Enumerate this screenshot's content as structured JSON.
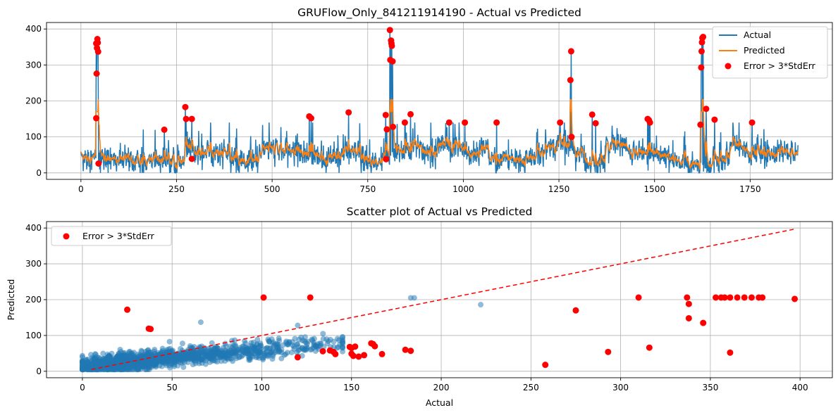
{
  "chart_data": [
    {
      "type": "line",
      "title": "GRUFlow_Only_841211914190 - Actual vs Predicted",
      "xlabel": "",
      "ylabel": "",
      "xlim": [
        -90,
        1965
      ],
      "ylim": [
        -18,
        418
      ],
      "xticks": [
        0,
        250,
        500,
        750,
        1000,
        1250,
        1500,
        1750
      ],
      "yticks": [
        0,
        100,
        200,
        300,
        400
      ],
      "grid": true,
      "legend_position": "top-right",
      "n_points": 1876,
      "colors": {
        "actual": "#1f77b4",
        "predicted": "#ff7f0e",
        "error": "#ff0000"
      },
      "series": [
        {
          "name": "Actual",
          "description": "noisy hourly flow, mostly 10-100 with spikes to ~398 near x=40, 810, 1283, 1625"
        },
        {
          "name": "Predicted",
          "description": "smoothed flow, mostly 20-80 with peaks ~205"
        }
      ],
      "error_points_label": "Error > 3*StdErr",
      "error_points": [
        [
          40,
          152
        ],
        [
          40,
          360
        ],
        [
          41,
          276
        ],
        [
          42,
          347
        ],
        [
          43,
          372
        ],
        [
          44,
          362
        ],
        [
          45,
          337
        ],
        [
          46,
          26
        ],
        [
          218,
          120
        ],
        [
          273,
          183
        ],
        [
          275,
          150
        ],
        [
          290,
          39
        ],
        [
          290,
          150
        ],
        [
          597,
          157
        ],
        [
          602,
          152
        ],
        [
          700,
          168
        ],
        [
          797,
          161
        ],
        [
          798,
          38
        ],
        [
          800,
          121
        ],
        [
          808,
          397
        ],
        [
          809,
          314
        ],
        [
          811,
          368
        ],
        [
          812,
          360
        ],
        [
          813,
          353
        ],
        [
          815,
          310
        ],
        [
          816,
          128
        ],
        [
          847,
          140
        ],
        [
          862,
          163
        ],
        [
          963,
          140
        ],
        [
          1004,
          140
        ],
        [
          1087,
          140
        ],
        [
          1253,
          140
        ],
        [
          1280,
          258
        ],
        [
          1282,
          338
        ],
        [
          1283,
          100
        ],
        [
          1337,
          162
        ],
        [
          1346,
          138
        ],
        [
          1482,
          150
        ],
        [
          1485,
          147
        ],
        [
          1488,
          140
        ],
        [
          1620,
          134
        ],
        [
          1622,
          293
        ],
        [
          1623,
          338
        ],
        [
          1624,
          363
        ],
        [
          1625,
          375
        ],
        [
          1627,
          378
        ],
        [
          1635,
          178
        ],
        [
          1657,
          148
        ],
        [
          1755,
          140
        ]
      ]
    },
    {
      "type": "scatter",
      "title": "Scatter plot of Actual vs Predicted",
      "xlabel": "Actual",
      "ylabel": "Predicted",
      "xlim": [
        -20,
        418
      ],
      "ylim": [
        -18,
        418
      ],
      "xticks": [
        0,
        50,
        100,
        150,
        200,
        250,
        300,
        350,
        400
      ],
      "yticks": [
        0,
        100,
        200,
        300,
        400
      ],
      "grid": true,
      "legend_position": "top-left",
      "identity_line": {
        "from": [
          5,
          5
        ],
        "to": [
          397,
          397
        ],
        "color": "#ff0000",
        "style": "dashed"
      },
      "bulk_description": "dense cloud of ~1800 blue points (alpha 0.5) for Actual 0-145, Predicted 5-140",
      "bulk_outliers": [
        [
          183,
          205
        ],
        [
          185,
          205
        ],
        [
          222,
          186
        ],
        [
          66,
          137
        ],
        [
          120,
          128
        ],
        [
          143,
          87
        ]
      ],
      "error_points_label": "Error > 3*StdErr",
      "error_points": [
        [
          25,
          172
        ],
        [
          37,
          119
        ],
        [
          38,
          118
        ],
        [
          101,
          206
        ],
        [
          120,
          39
        ],
        [
          127,
          206
        ],
        [
          134,
          56
        ],
        [
          138,
          58
        ],
        [
          140,
          54
        ],
        [
          141,
          48
        ],
        [
          149,
          68
        ],
        [
          150,
          65
        ],
        [
          150,
          49
        ],
        [
          151,
          43
        ],
        [
          152,
          69
        ],
        [
          154,
          41
        ],
        [
          157,
          45
        ],
        [
          161,
          78
        ],
        [
          162,
          76
        ],
        [
          163,
          70
        ],
        [
          167,
          48
        ],
        [
          180,
          60
        ],
        [
          183,
          57
        ],
        [
          258,
          18
        ],
        [
          275,
          170
        ],
        [
          293,
          54
        ],
        [
          310,
          206
        ],
        [
          316,
          66
        ],
        [
          337,
          206
        ],
        [
          338,
          188
        ],
        [
          338,
          148
        ],
        [
          346,
          135
        ],
        [
          353,
          206
        ],
        [
          356,
          206
        ],
        [
          358,
          206
        ],
        [
          361,
          206
        ],
        [
          361,
          52
        ],
        [
          365,
          206
        ],
        [
          369,
          206
        ],
        [
          373,
          206
        ],
        [
          377,
          206
        ],
        [
          379,
          206
        ],
        [
          397,
          202
        ]
      ]
    }
  ]
}
